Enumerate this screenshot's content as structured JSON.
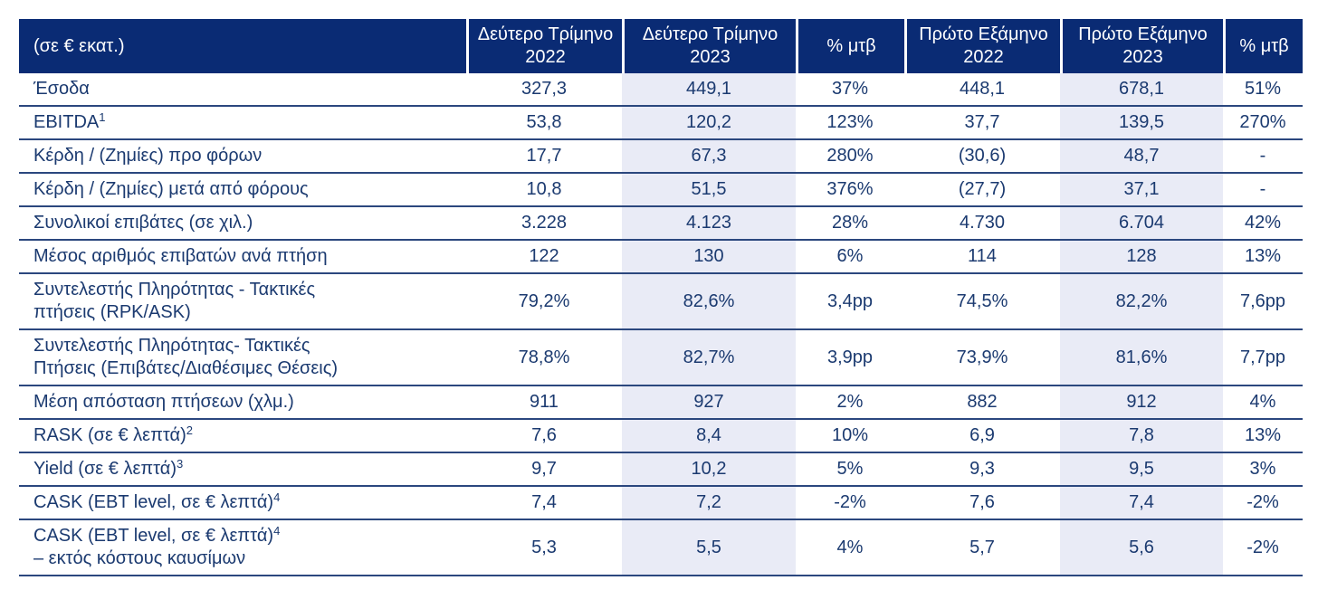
{
  "colors": {
    "header_bg": "#0A2B74",
    "header_fg": "#FFFFFF",
    "body_fg": "#1B3A70",
    "line": "#2B477E",
    "shade_bg": "#E9EBF6"
  },
  "table": {
    "unit_label": "(σε € εκατ.)",
    "columns": [
      "Δεύτερο Τρίμηνο 2022",
      "Δεύτερο Τρίμηνο 2023",
      "% μτβ",
      "Πρώτο Εξάμηνο 2022",
      "Πρώτο Εξάμηνο 2023",
      "% μτβ"
    ],
    "shaded_value_columns": [
      1,
      4
    ],
    "rows": [
      {
        "label": "Έσοδα",
        "sup": "",
        "label2": "",
        "values": [
          "327,3",
          "449,1",
          "37%",
          "448,1",
          "678,1",
          "51%"
        ]
      },
      {
        "label": "EBITDA",
        "sup": "1",
        "label2": "",
        "values": [
          "53,8",
          "120,2",
          "123%",
          "37,7",
          "139,5",
          "270%"
        ]
      },
      {
        "label": "Κέρδη / (Ζημίες) προ φόρων",
        "sup": "",
        "label2": "",
        "values": [
          "17,7",
          "67,3",
          "280%",
          "(30,6)",
          "48,7",
          "-"
        ]
      },
      {
        "label": "Κέρδη / (Ζημίες) μετά από φόρους",
        "sup": "",
        "label2": "",
        "values": [
          "10,8",
          "51,5",
          "376%",
          "(27,7)",
          "37,1",
          "-"
        ]
      },
      {
        "label": "Συνολικοί επιβάτες (σε χιλ.)",
        "sup": "",
        "label2": "",
        "values": [
          "3.228",
          "4.123",
          "28%",
          "4.730",
          "6.704",
          "42%"
        ]
      },
      {
        "label": "Μέσος αριθμός επιβατών ανά πτήση",
        "sup": "",
        "label2": "",
        "values": [
          "122",
          "130",
          "6%",
          "114",
          "128",
          "13%"
        ]
      },
      {
        "label": "Συντελεστής Πληρότητας - Τακτικές",
        "sup": "",
        "label2": "πτήσεις (RPK/ASK)",
        "values": [
          "79,2%",
          "82,6%",
          "3,4pp",
          "74,5%",
          "82,2%",
          "7,6pp"
        ]
      },
      {
        "label": "Συντελεστής Πληρότητας- Τακτικές",
        "sup": "",
        "label2": "Πτήσεις (Επιβάτες/Διαθέσιμες Θέσεις)",
        "values": [
          "78,8%",
          "82,7%",
          "3,9pp",
          "73,9%",
          "81,6%",
          "7,7pp"
        ]
      },
      {
        "label": "Μέση απόσταση πτήσεων (χλμ.)",
        "sup": "",
        "label2": "",
        "values": [
          "911",
          "927",
          "2%",
          "882",
          "912",
          "4%"
        ]
      },
      {
        "label": "RASK (σε € λεπτά)",
        "sup": "2",
        "label2": "",
        "values": [
          "7,6",
          "8,4",
          "10%",
          "6,9",
          "7,8",
          "13%"
        ]
      },
      {
        "label": "Yield (σε € λεπτά)",
        "sup": "3",
        "label2": "",
        "values": [
          "9,7",
          "10,2",
          "5%",
          "9,3",
          "9,5",
          "3%"
        ]
      },
      {
        "label": "CASK (EBT level, σε € λεπτά)",
        "sup": "4",
        "label2": "",
        "values": [
          "7,4",
          "7,2",
          "-2%",
          "7,6",
          "7,4",
          "-2%"
        ]
      },
      {
        "label": "CASK (EBT level, σε € λεπτά)",
        "sup": "4",
        "label2": "– εκτός κόστους καυσίμων",
        "values": [
          "5,3",
          "5,5",
          "4%",
          "5,7",
          "5,6",
          "-2%"
        ]
      }
    ]
  }
}
